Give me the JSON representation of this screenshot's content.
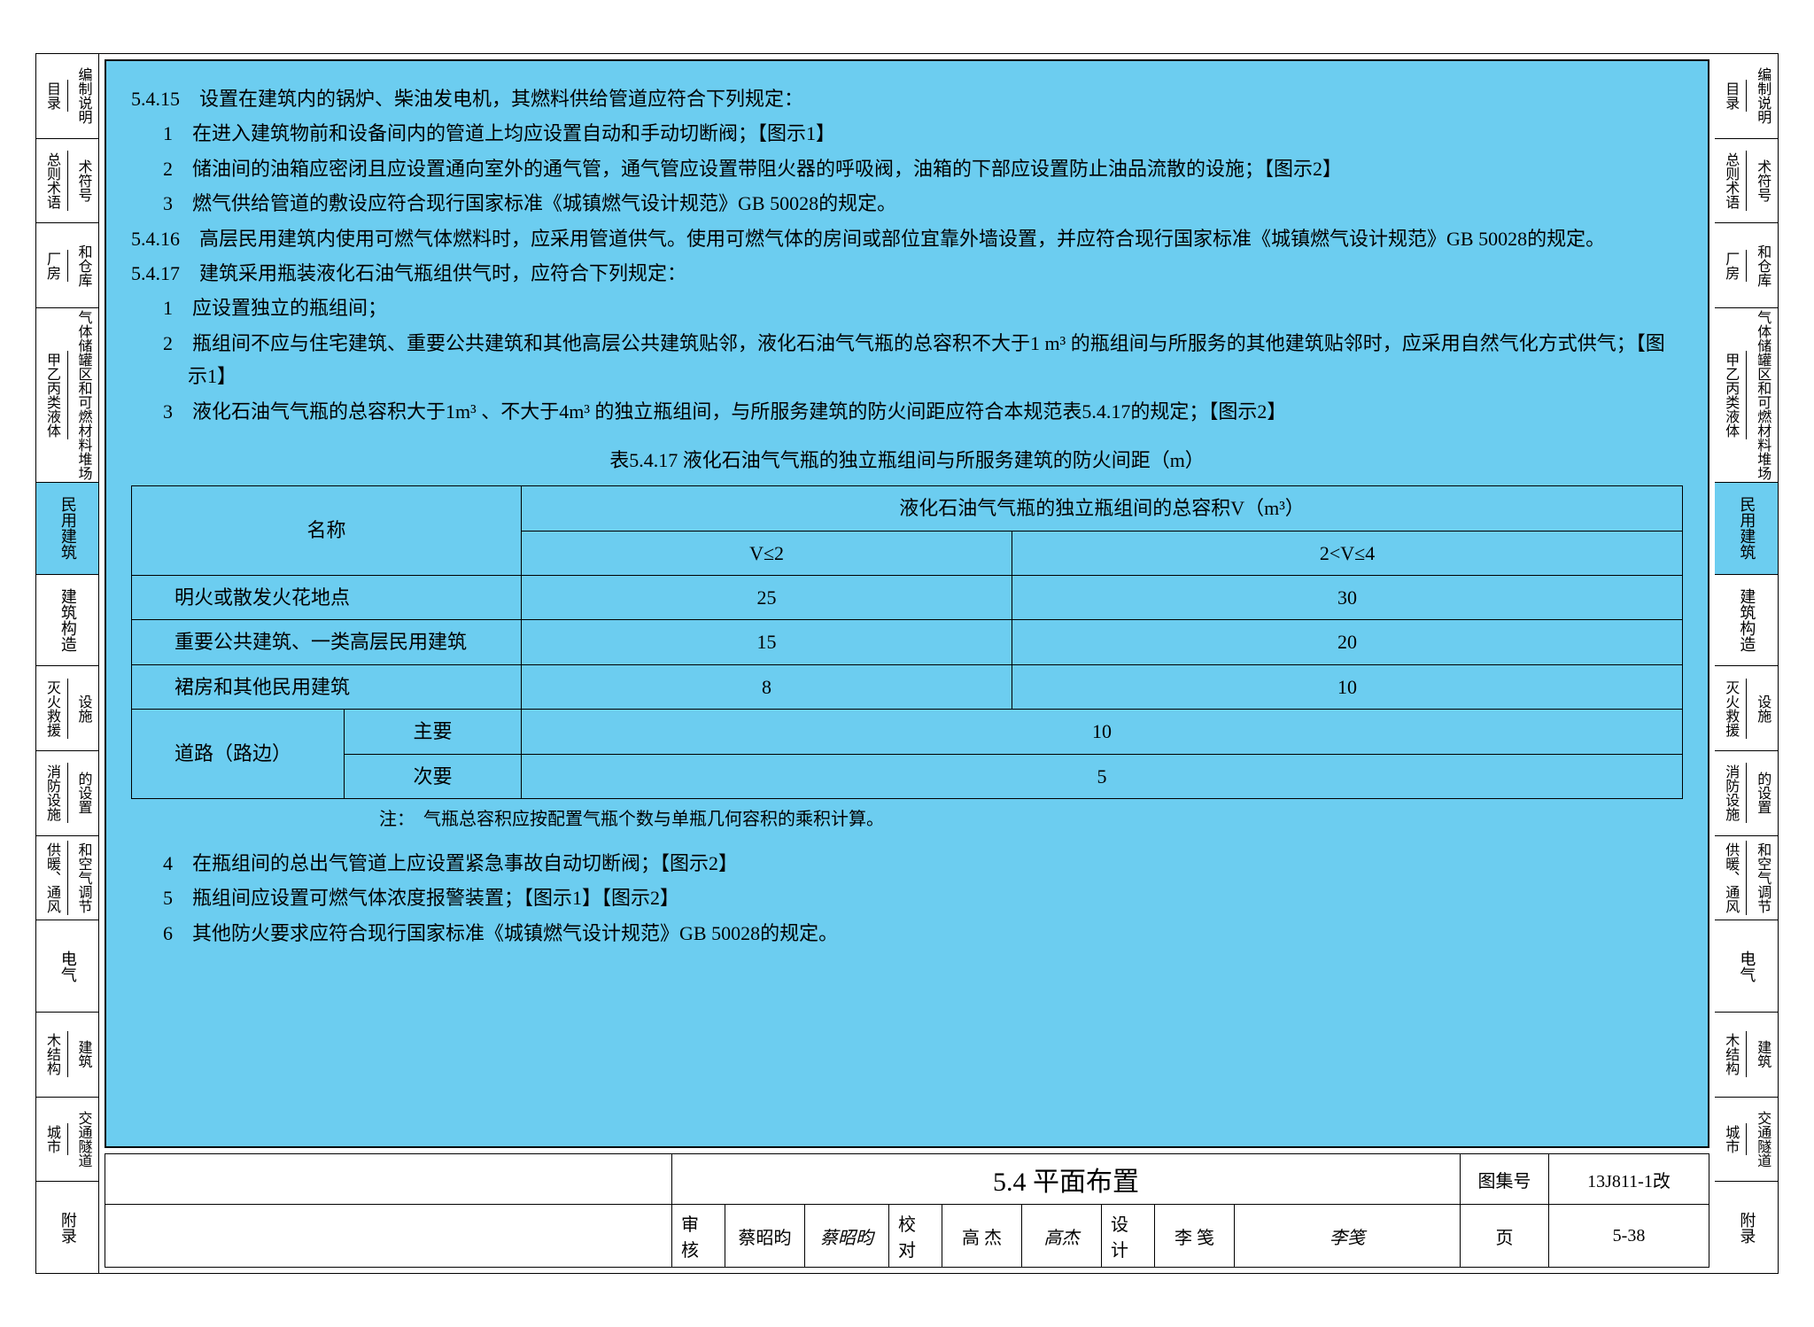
{
  "colors": {
    "highlight": "#6ccdf0",
    "border": "#000000",
    "bg": "#ffffff"
  },
  "tabs": [
    {
      "type": "split",
      "a": "目录",
      "b": "编制说明"
    },
    {
      "type": "split",
      "a": "总则术语",
      "b": "术符号"
    },
    {
      "type": "split",
      "a": "厂房",
      "b": "和仓库"
    },
    {
      "type": "split",
      "a": "甲乙丙类液体",
      "b": "气体储罐区和可燃材料堆场",
      "small": true
    },
    {
      "type": "single",
      "label": "民用建筑",
      "active": true
    },
    {
      "type": "single",
      "label": "建筑构造"
    },
    {
      "type": "split",
      "a": "灭火救援",
      "b": "设施"
    },
    {
      "type": "split",
      "a": "消防设施",
      "b": "的设置"
    },
    {
      "type": "split",
      "a": "供暖、通风",
      "b": "和空气调节"
    },
    {
      "type": "single",
      "label": "电气"
    },
    {
      "type": "split",
      "a": "木结构",
      "b": "建筑"
    },
    {
      "type": "split",
      "a": "城市",
      "b": "交通隧道"
    },
    {
      "type": "single",
      "label": "附录"
    }
  ],
  "body": {
    "p5415": "5.4.15　设置在建筑内的锅炉、柴油发电机，其燃料供给管道应符合下列规定：",
    "p5415_1": "1　在进入建筑物前和设备间内的管道上均应设置自动和手动切断阀；【图示1】",
    "p5415_2": "2　储油间的油箱应密闭且应设置通向室外的通气管，通气管应设置带阻火器的呼吸阀，油箱的下部应设置防止油品流散的设施；【图示2】",
    "p5415_3": "3　燃气供给管道的敷设应符合现行国家标准《城镇燃气设计规范》GB 50028的规定。",
    "p5416": "5.4.16　高层民用建筑内使用可燃气体燃料时，应采用管道供气。使用可燃气体的房间或部位宜靠外墙设置，并应符合现行国家标准《城镇燃气设计规范》GB 50028的规定。",
    "p5417": "5.4.17　建筑采用瓶装液化石油气瓶组供气时，应符合下列规定：",
    "p5417_1": "1　应设置独立的瓶组间；",
    "p5417_2": "2　瓶组间不应与住宅建筑、重要公共建筑和其他高层公共建筑贴邻，液化石油气气瓶的总容积不大于1 m³ 的瓶组间与所服务的其他建筑贴邻时，应采用自然气化方式供气；【图示1】",
    "p5417_3": "3　液化石油气气瓶的总容积大于1m³ 、不大于4m³ 的独立瓶组间，与所服务建筑的防火间距应符合本规范表5.4.17的规定；【图示2】",
    "table_title": "表5.4.17 液化石油气气瓶的独立瓶组间与所服务建筑的防火间距（m）",
    "table": {
      "head_name": "名称",
      "head_group": "液化石油气气瓶的独立瓶组间的总容积V（m³）",
      "col1": "V≤2",
      "col2": "2<V≤4",
      "rows": [
        {
          "name": "明火或散发火花地点",
          "v1": "25",
          "v2": "30"
        },
        {
          "name": "重要公共建筑、一类高层民用建筑",
          "v1": "15",
          "v2": "20"
        },
        {
          "name": "裙房和其他民用建筑",
          "v1": "8",
          "v2": "10"
        }
      ],
      "road_label": "道路（路边）",
      "road_major_label": "主要",
      "road_major": "10",
      "road_minor_label": "次要",
      "road_minor": "5"
    },
    "note": "注：　气瓶总容积应按配置气瓶个数与单瓶几何容积的乘积计算。",
    "p5417_4": "4　在瓶组间的总出气管道上应设置紧急事故自动切断阀；【图示2】",
    "p5417_5": "5　瓶组间应设置可燃气体浓度报警装置；【图示1】【图示2】",
    "p5417_6": "6　其他防火要求应符合现行国家标准《城镇燃气设计规范》GB 50028的规定。"
  },
  "titleblock": {
    "main": "5.4 平面布置",
    "atlas_lbl": "图集号",
    "atlas": "13J811-1改",
    "review_lbl": "审核",
    "review_name": "蔡昭昀",
    "review_sig": "蔡昭昀",
    "proof_lbl": "校对",
    "proof_name": "高 杰",
    "proof_sig": "高杰",
    "design_lbl": "设计",
    "design_name": "李 笺",
    "design_sig": "李笺",
    "page_lbl": "页",
    "page": "5-38"
  }
}
